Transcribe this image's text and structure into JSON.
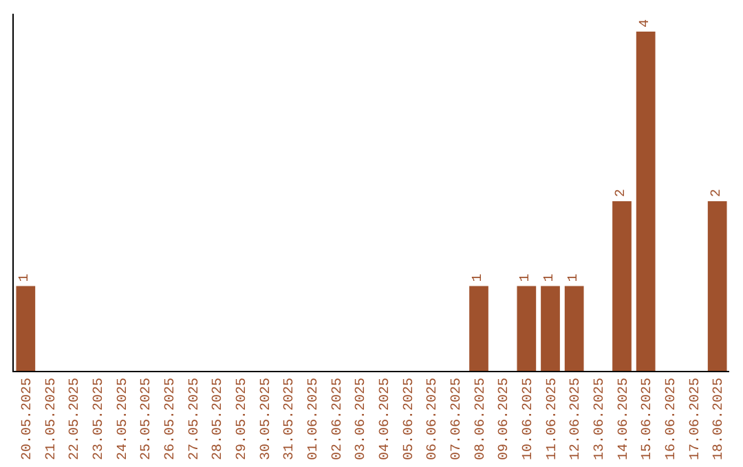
{
  "chart_data": {
    "type": "bar",
    "categories": [
      "20.05.2025",
      "21.05.2025",
      "22.05.2025",
      "23.05.2025",
      "24.05.2025",
      "25.05.2025",
      "26.05.2025",
      "27.05.2025",
      "28.05.2025",
      "29.05.2025",
      "30.05.2025",
      "31.05.2025",
      "01.06.2025",
      "02.06.2025",
      "03.06.2025",
      "04.06.2025",
      "05.06.2025",
      "06.06.2025",
      "07.06.2025",
      "08.06.2025",
      "09.06.2025",
      "10.06.2025",
      "11.06.2025",
      "12.06.2025",
      "13.06.2025",
      "14.06.2025",
      "15.06.2025",
      "16.06.2025",
      "17.06.2025",
      "18.06.2025"
    ],
    "values": [
      1,
      0,
      0,
      0,
      0,
      0,
      0,
      0,
      0,
      0,
      0,
      0,
      0,
      0,
      0,
      0,
      0,
      0,
      0,
      1,
      0,
      1,
      1,
      1,
      0,
      2,
      4,
      0,
      0,
      2
    ],
    "value_labels": [
      "1",
      null,
      null,
      null,
      null,
      null,
      null,
      null,
      null,
      null,
      null,
      null,
      null,
      null,
      null,
      null,
      null,
      null,
      null,
      "1",
      null,
      "1",
      "1",
      "1",
      null,
      "2",
      "4",
      null,
      null,
      "2"
    ],
    "color": "#a0522d",
    "grid": false,
    "tick_labels": "x"
  }
}
